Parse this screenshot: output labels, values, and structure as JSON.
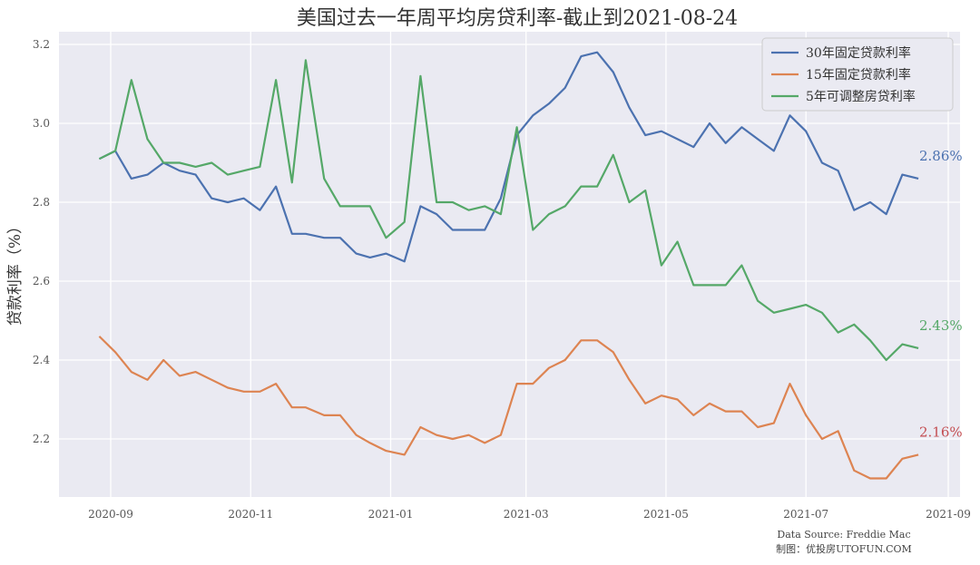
{
  "chart_data": {
    "type": "line",
    "title": "美国过去一年周平均房贷利率-截止到2021-08-24",
    "xlabel": "",
    "ylabel": "贷款利率（%）",
    "ylim": [
      2.07,
      3.23
    ],
    "yticks": [
      2.2,
      2.4,
      2.6,
      2.8,
      3.0,
      3.2
    ],
    "ytick_labels": [
      "2.2",
      "2.4",
      "2.6",
      "2.8",
      "3.0",
      "3.2"
    ],
    "xticks": [
      "2020-09",
      "2020-11",
      "2021-01",
      "2021-03",
      "2021-05",
      "2021-07",
      "2021-09"
    ],
    "grid": true,
    "legend_position": "upper right",
    "x": [
      "2020-08-27",
      "2020-09-03",
      "2020-09-10",
      "2020-09-17",
      "2020-09-24",
      "2020-10-01",
      "2020-10-08",
      "2020-10-15",
      "2020-10-22",
      "2020-10-29",
      "2020-11-05",
      "2020-11-12",
      "2020-11-19",
      "2020-11-25",
      "2020-12-03",
      "2020-12-10",
      "2020-12-17",
      "2020-12-23",
      "2020-12-30",
      "2021-01-07",
      "2021-01-14",
      "2021-01-21",
      "2021-01-28",
      "2021-02-04",
      "2021-02-11",
      "2021-02-18",
      "2021-02-25",
      "2021-03-04",
      "2021-03-11",
      "2021-03-18",
      "2021-03-25",
      "2021-04-01",
      "2021-04-08",
      "2021-04-15",
      "2021-04-22",
      "2021-04-29",
      "2021-05-06",
      "2021-05-13",
      "2021-05-20",
      "2021-05-27",
      "2021-06-03",
      "2021-06-10",
      "2021-06-17",
      "2021-06-24",
      "2021-07-01",
      "2021-07-08",
      "2021-07-15",
      "2021-07-22",
      "2021-07-29",
      "2021-08-05",
      "2021-08-12",
      "2021-08-19"
    ],
    "series": [
      {
        "name": "30年固定贷款利率",
        "color": "#4c72b0",
        "values": [
          2.91,
          2.93,
          2.86,
          2.87,
          2.9,
          2.88,
          2.87,
          2.81,
          2.8,
          2.81,
          2.78,
          2.84,
          2.72,
          2.72,
          2.71,
          2.71,
          2.67,
          2.66,
          2.67,
          2.65,
          2.79,
          2.77,
          2.73,
          2.73,
          2.73,
          2.81,
          2.97,
          3.02,
          3.05,
          3.09,
          3.17,
          3.18,
          3.13,
          3.04,
          2.97,
          2.98,
          2.96,
          2.94,
          3.0,
          2.95,
          2.99,
          2.96,
          2.93,
          3.02,
          2.98,
          2.9,
          2.88,
          2.78,
          2.8,
          2.77,
          2.87,
          2.86
        ]
      },
      {
        "name": "15年固定贷款利率",
        "color": "#dd8452",
        "values": [
          2.46,
          2.42,
          2.37,
          2.35,
          2.4,
          2.36,
          2.37,
          2.35,
          2.33,
          2.32,
          2.32,
          2.34,
          2.28,
          2.28,
          2.26,
          2.26,
          2.21,
          2.19,
          2.17,
          2.16,
          2.23,
          2.21,
          2.2,
          2.21,
          2.19,
          2.21,
          2.34,
          2.34,
          2.38,
          2.4,
          2.45,
          2.45,
          2.42,
          2.35,
          2.29,
          2.31,
          2.3,
          2.26,
          2.29,
          2.27,
          2.27,
          2.23,
          2.24,
          2.34,
          2.26,
          2.2,
          2.22,
          2.12,
          2.1,
          2.1,
          2.15,
          2.16
        ]
      },
      {
        "name": "5年可调整房贷利率",
        "color": "#55a868",
        "values": [
          2.91,
          2.93,
          3.11,
          2.96,
          2.9,
          2.9,
          2.89,
          2.9,
          2.87,
          2.88,
          2.89,
          3.11,
          2.85,
          3.16,
          2.86,
          2.79,
          2.79,
          2.79,
          2.71,
          2.75,
          3.12,
          2.8,
          2.8,
          2.78,
          2.79,
          2.77,
          2.99,
          2.73,
          2.77,
          2.79,
          2.84,
          2.84,
          2.92,
          2.8,
          2.83,
          2.64,
          2.7,
          2.59,
          2.59,
          2.59,
          2.64,
          2.55,
          2.52,
          2.53,
          2.54,
          2.52,
          2.47,
          2.49,
          2.45,
          2.4,
          2.44,
          2.43
        ]
      }
    ],
    "annotations": [
      {
        "text": "2.86%",
        "color": "#4c72b0",
        "value": 2.86
      },
      {
        "text": "2.43%",
        "color": "#55a868",
        "value": 2.43
      },
      {
        "text": "2.16%",
        "color": "#c44e52",
        "value": 2.16
      }
    ],
    "source_lines": [
      "Data Source: Freddie Mac",
      "制图：优投房UTOFUN.COM"
    ]
  },
  "style": {
    "plot_bg": "#eaeaf2",
    "grid_color": "#ffffff"
  }
}
